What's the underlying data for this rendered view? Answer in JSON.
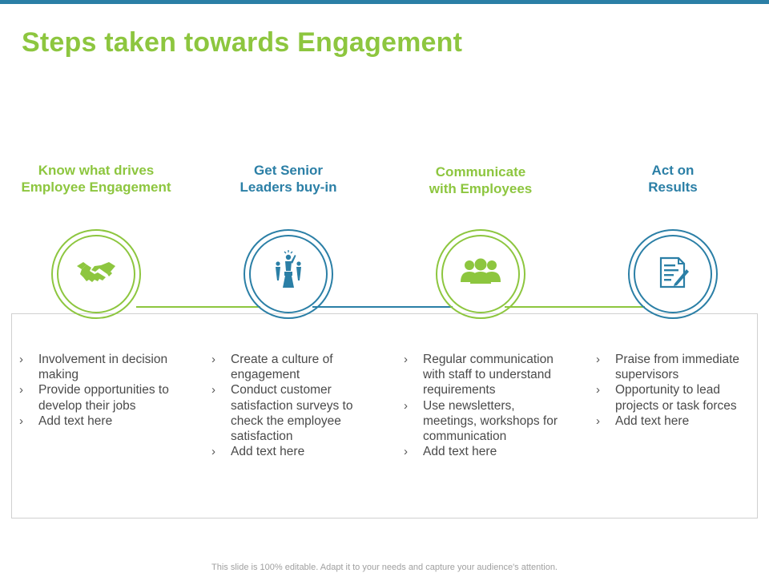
{
  "slide": {
    "title": "Steps taken towards Engagement",
    "footer": "This slide is 100% editable. Adapt it to your needs and capture your audience's attention."
  },
  "colors": {
    "green": "#8dc63f",
    "blue": "#2b7fa6",
    "text": "#4a4a4a"
  },
  "steps": [
    {
      "heading": "Know what drives\nEmployee Engagement",
      "icon": "handshake-icon",
      "color": "green",
      "bullets": [
        "Involvement  in decision making",
        "Provide opportunities to develop their jobs",
        "Add text here"
      ]
    },
    {
      "heading": "Get Senior\nLeaders buy-in",
      "icon": "leader-podium-icon",
      "color": "blue",
      "bullets": [
        "Create a culture of engagement",
        "Conduct customer satisfaction surveys  to check the employee satisfaction",
        "Add text here"
      ]
    },
    {
      "heading": "Communicate\nwith Employees",
      "icon": "team-icon",
      "color": "green",
      "bullets": [
        "Regular communication with staff to understand requirements",
        "Use newsletters, meetings, workshops for communication",
        "Add text here"
      ]
    },
    {
      "heading": "Act on\nResults",
      "icon": "document-edit-icon",
      "color": "blue",
      "bullets": [
        "Praise from immediate supervisors",
        "Opportunity  to lead projects or task forces",
        "Add text here"
      ]
    }
  ]
}
